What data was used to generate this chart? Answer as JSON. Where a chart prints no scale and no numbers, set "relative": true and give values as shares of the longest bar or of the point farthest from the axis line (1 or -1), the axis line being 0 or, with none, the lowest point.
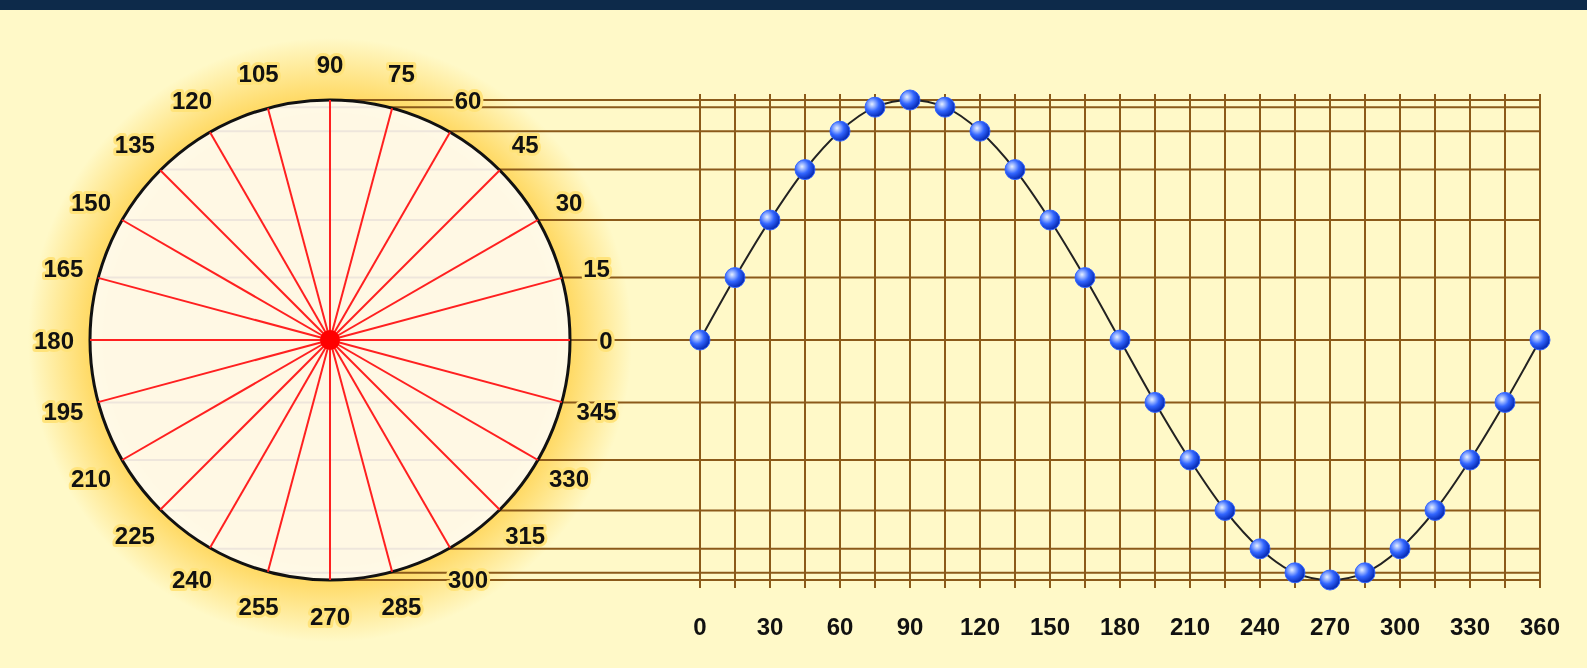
{
  "chart_data": {
    "type": "line",
    "relative": true,
    "x": [
      0,
      15,
      30,
      45,
      60,
      75,
      90,
      105,
      120,
      135,
      150,
      165,
      180,
      195,
      210,
      225,
      240,
      255,
      270,
      285,
      300,
      315,
      330,
      345,
      360
    ],
    "series": [
      {
        "color": "#3366ff",
        "values": [
          0,
          0.26,
          0.5,
          0.71,
          0.87,
          0.97,
          1,
          0.97,
          0.87,
          0.71,
          0.5,
          0.26,
          0,
          -0.26,
          -0.5,
          -0.71,
          -0.87,
          -0.97,
          -1,
          -0.97,
          -0.87,
          -0.71,
          -0.5,
          -0.26,
          0
        ]
      }
    ],
    "xlim": [
      0,
      360
    ],
    "xticks": [
      0,
      {
        "value": 15,
        "label": null
      },
      30,
      {
        "value": 45,
        "label": null
      },
      60,
      {
        "value": 75,
        "label": null
      },
      90,
      {
        "value": 105,
        "label": null
      },
      120,
      {
        "value": 135,
        "label": null
      },
      150,
      {
        "value": 165,
        "label": null
      },
      180,
      {
        "value": 195,
        "label": null
      },
      210,
      {
        "value": 225,
        "label": null
      },
      240,
      {
        "value": 255,
        "label": null
      },
      270,
      {
        "value": 285,
        "label": null
      },
      300,
      {
        "value": 315,
        "label": null
      },
      330,
      {
        "value": 345,
        "label": null
      },
      360
    ],
    "grid": true,
    "marker": "circle",
    "annotations": [
      "0",
      "15",
      "30",
      "45",
      "60",
      "75",
      "90",
      "105",
      "120",
      "135",
      "150",
      "165",
      "180",
      "195",
      "210",
      "225",
      "240",
      "255",
      "270",
      "285",
      "300",
      "315",
      "330",
      "345"
    ]
  }
}
